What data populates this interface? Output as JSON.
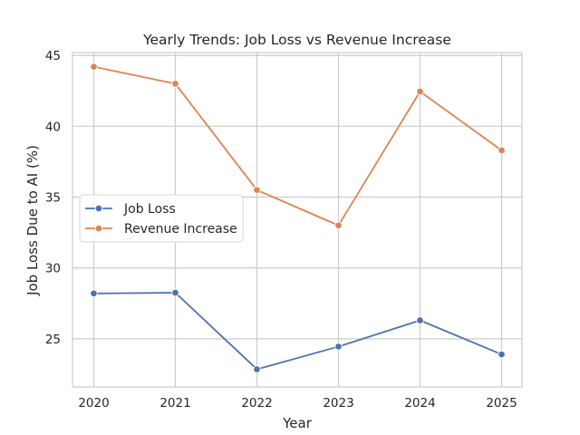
{
  "chart_data": {
    "type": "line",
    "title": "Yearly Trends: Job Loss vs Revenue Increase",
    "xlabel": "Year",
    "ylabel": "Job Loss Due to AI (%)",
    "x": [
      "2020",
      "2021",
      "2022",
      "2023",
      "2024",
      "2025"
    ],
    "yticks": [
      25,
      30,
      35,
      40,
      45
    ],
    "ylim": [
      21.6,
      45.2
    ],
    "grid": true,
    "legend_position": "center-left",
    "series": [
      {
        "name": "Job Loss",
        "color": "#4c72b0",
        "values": [
          28.2,
          28.25,
          22.85,
          24.45,
          26.3,
          23.9
        ]
      },
      {
        "name": "Revenue Increase",
        "color": "#dd8452",
        "values": [
          44.2,
          43.0,
          35.5,
          33.0,
          42.45,
          38.3
        ]
      }
    ]
  }
}
